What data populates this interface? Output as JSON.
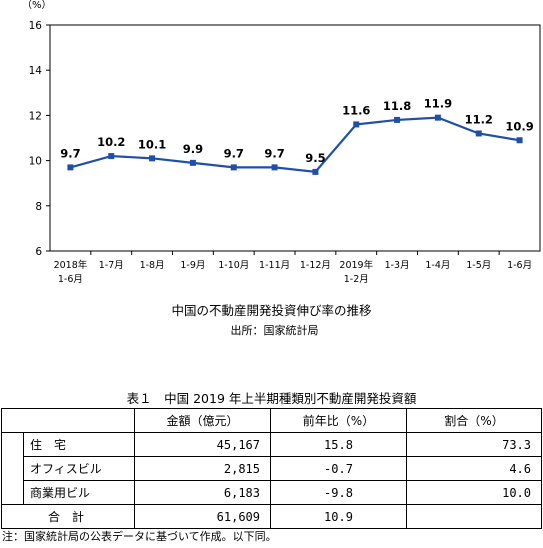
{
  "chart_data": {
    "type": "line",
    "ylabel": "（%）",
    "ylim": [
      6,
      16
    ],
    "yticks": [
      6,
      8,
      10,
      12,
      14,
      16
    ],
    "categories": [
      "2018年\n1-6月",
      "1-7月",
      "1-8月",
      "1-9月",
      "1-10月",
      "1-11月",
      "1-12月",
      "2019年\n1-2月",
      "1-3月",
      "1-4月",
      "1-5月",
      "1-6月"
    ],
    "series": [
      {
        "values": [
          9.7,
          10.2,
          10.1,
          9.9,
          9.7,
          9.7,
          9.5,
          11.6,
          11.8,
          11.9,
          11.2,
          10.9
        ],
        "labels": [
          "9.7",
          "10.2",
          "10.1",
          "9.9",
          "9.7",
          "9.7",
          "9.5",
          "11.6",
          "11.8",
          "11.9",
          "11.2",
          "10.9"
        ]
      }
    ],
    "line_color": "#1f4fa8",
    "title": "中国の不動産開発投資伸び率の推移",
    "source": "出所：国家統計局"
  },
  "table": {
    "title": "表１　中国 2019 年上半期種類別不動産開発投資額",
    "headers": [
      "金額（億元）",
      "前年比（%）",
      "割合（%）"
    ],
    "rows": [
      {
        "name": "住　宅",
        "amount": "45,167",
        "yoy": "15.8",
        "share": "73.3"
      },
      {
        "name": "オフィスビル",
        "amount": "2,815",
        "yoy": "-0.7",
        "share": "4.6"
      },
      {
        "name": "商業用ビル",
        "amount": "6,183",
        "yoy": "-9.8",
        "share": "10.0"
      }
    ],
    "total": {
      "name": "合　計",
      "amount": "61,609",
      "yoy": "10.9",
      "share": ""
    }
  },
  "footnote": "注：国家統計局の公表データに基づいて作成。以下同。"
}
